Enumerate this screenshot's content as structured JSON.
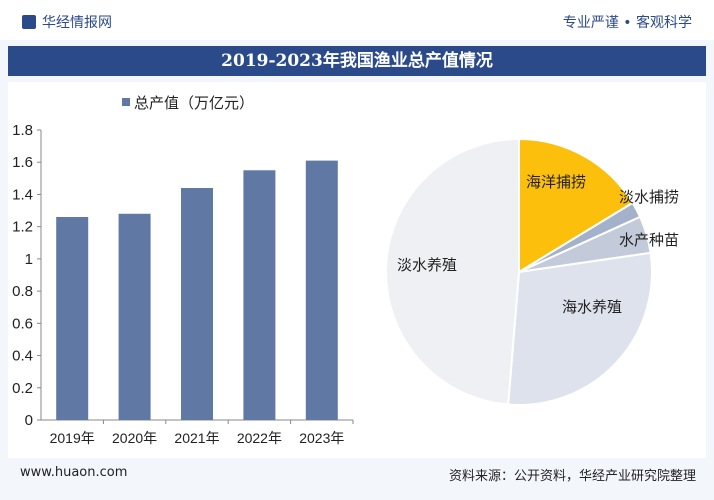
{
  "header": {
    "logo": "华经情报网",
    "slogan": "专业严谨 • 客观科学",
    "title": "2019-2023年我国渔业总产值情况"
  },
  "footer": {
    "url": "www.huaon.com",
    "source": "资料来源：公开资料，华经产业研究院整理"
  },
  "watermark": "华经产业研究院",
  "chart_data": [
    {
      "type": "bar",
      "categories": [
        "2019年",
        "2020年",
        "2021年",
        "2022年",
        "2023年"
      ],
      "series": [
        {
          "name": "总产值（万亿元）",
          "values": [
            1.26,
            1.28,
            1.44,
            1.55,
            1.61
          ]
        }
      ],
      "ylim": [
        0,
        1.8
      ],
      "yticks": [
        "0",
        "0.2",
        "0.4",
        "0.6",
        "0.8",
        "1",
        "1.2",
        "1.4",
        "1.6",
        "1.8"
      ],
      "legend": "top",
      "grid": false,
      "color": "#6078a4"
    },
    {
      "type": "pie",
      "labels": [
        "海洋捕捞",
        "淡水捕捞",
        "水产种苗",
        "海水养殖",
        "淡水养殖"
      ],
      "values": [
        16.3,
        1.9,
        4.5,
        28.6,
        48.7
      ],
      "colors": [
        "#fbbf0c",
        "#a3b1cb",
        "#c3cbdb",
        "#dde2ec",
        "#eef0f4"
      ]
    }
  ]
}
